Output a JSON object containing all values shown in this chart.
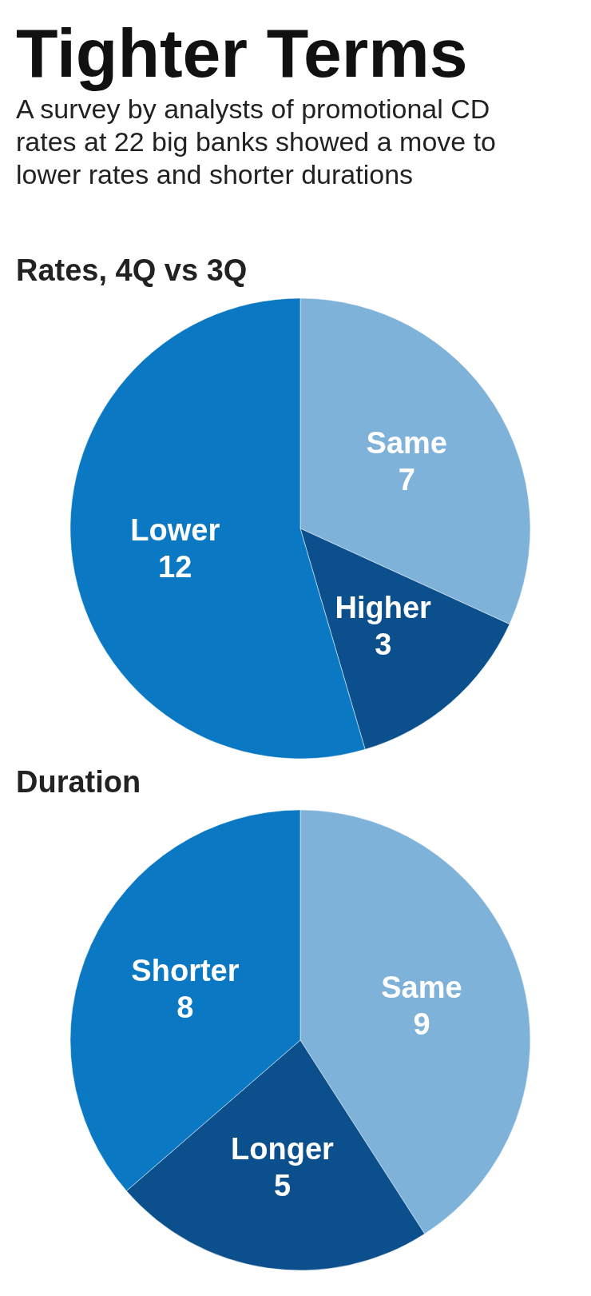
{
  "chart_data": [
    {
      "type": "other",
      "title": "Tighter Terms",
      "subtitle": "A survey by analysts of promotional CD rates at 22 big banks showed a move to lower rates and shorter durations"
    },
    {
      "type": "pie",
      "title": "Rates, 4Q vs 3Q",
      "categories": [
        "Same",
        "Higher",
        "Lower"
      ],
      "values": [
        7,
        3,
        12
      ],
      "colors": [
        "#7fb2d8",
        "#0b4f8c",
        "#0a78c2"
      ],
      "data_labels": true,
      "legend": false
    },
    {
      "type": "pie",
      "title": "Duration",
      "categories": [
        "Same",
        "Longer",
        "Shorter"
      ],
      "values": [
        9,
        5,
        8
      ],
      "colors": [
        "#7fb2d8",
        "#0b4f8c",
        "#0a78c2"
      ],
      "data_labels": true,
      "legend": false
    }
  ]
}
